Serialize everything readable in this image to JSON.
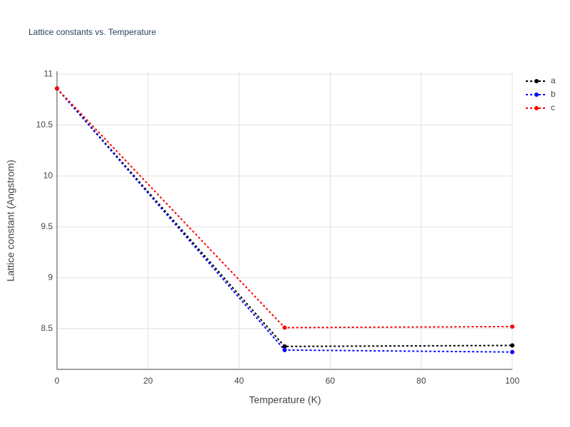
{
  "chart_data": {
    "type": "line",
    "title": "Lattice constants vs. Temperature",
    "x_label": "Temperature (K)",
    "y_label": "Lattice constant (Angstrom)",
    "x": [
      0,
      50,
      100
    ],
    "series": [
      {
        "name": "a",
        "color": "#000000",
        "values": [
          10.86,
          8.325,
          8.335
        ]
      },
      {
        "name": "b",
        "color": "#0000ff",
        "values": [
          10.86,
          8.29,
          8.27
        ]
      },
      {
        "name": "c",
        "color": "#ff0000",
        "values": [
          10.86,
          8.51,
          8.52
        ]
      }
    ],
    "xlim": [
      0,
      100
    ],
    "xticks": [
      0,
      20,
      40,
      60,
      80,
      100
    ],
    "ylim": [
      8.1,
      11.03
    ],
    "yticks": [
      8.5,
      9,
      9.5,
      10,
      10.5,
      11
    ],
    "grid": true,
    "legend": "top-right"
  }
}
